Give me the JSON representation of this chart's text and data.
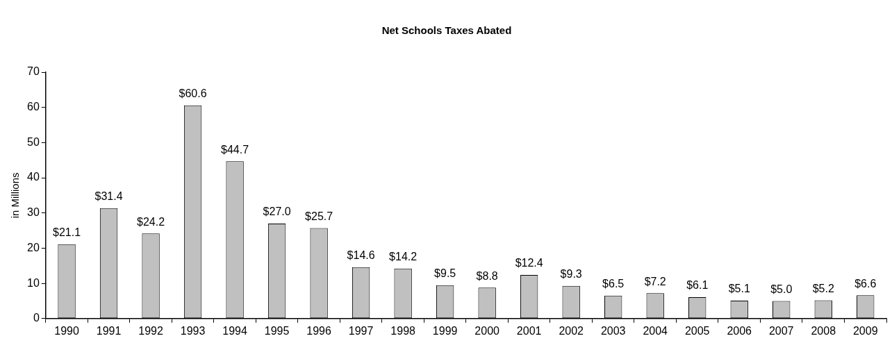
{
  "chart_data": {
    "type": "bar",
    "title": "Net Schools Taxes Abated",
    "ylabel": "in Millions",
    "categories": [
      "1990",
      "1991",
      "1992",
      "1993",
      "1994",
      "1995",
      "1996",
      "1997",
      "1998",
      "1999",
      "2000",
      "2001",
      "2002",
      "2003",
      "2004",
      "2005",
      "2006",
      "2007",
      "2008",
      "2009"
    ],
    "values": [
      21.1,
      31.4,
      24.2,
      60.6,
      44.7,
      27.0,
      25.7,
      14.6,
      14.2,
      9.5,
      8.8,
      12.4,
      9.3,
      6.5,
      7.2,
      6.1,
      5.1,
      5.0,
      5.2,
      6.6
    ],
    "value_labels": [
      "$21.1",
      "$31.4",
      "$24.2",
      "$60.6",
      "$44.7",
      "$27.0",
      "$25.7",
      "$14.6",
      "$14.2",
      "$9.5",
      "$8.8",
      "$12.4",
      "$9.3",
      "$6.5",
      "$7.2",
      "$6.1",
      "$5.1",
      "$5.0",
      "$5.2",
      "$6.6"
    ],
    "color": "#c0c0c0",
    "ylim": [
      0,
      70
    ],
    "yticks": [
      0,
      10,
      20,
      30,
      40,
      50,
      60,
      70
    ],
    "grid": false,
    "legend": false
  }
}
